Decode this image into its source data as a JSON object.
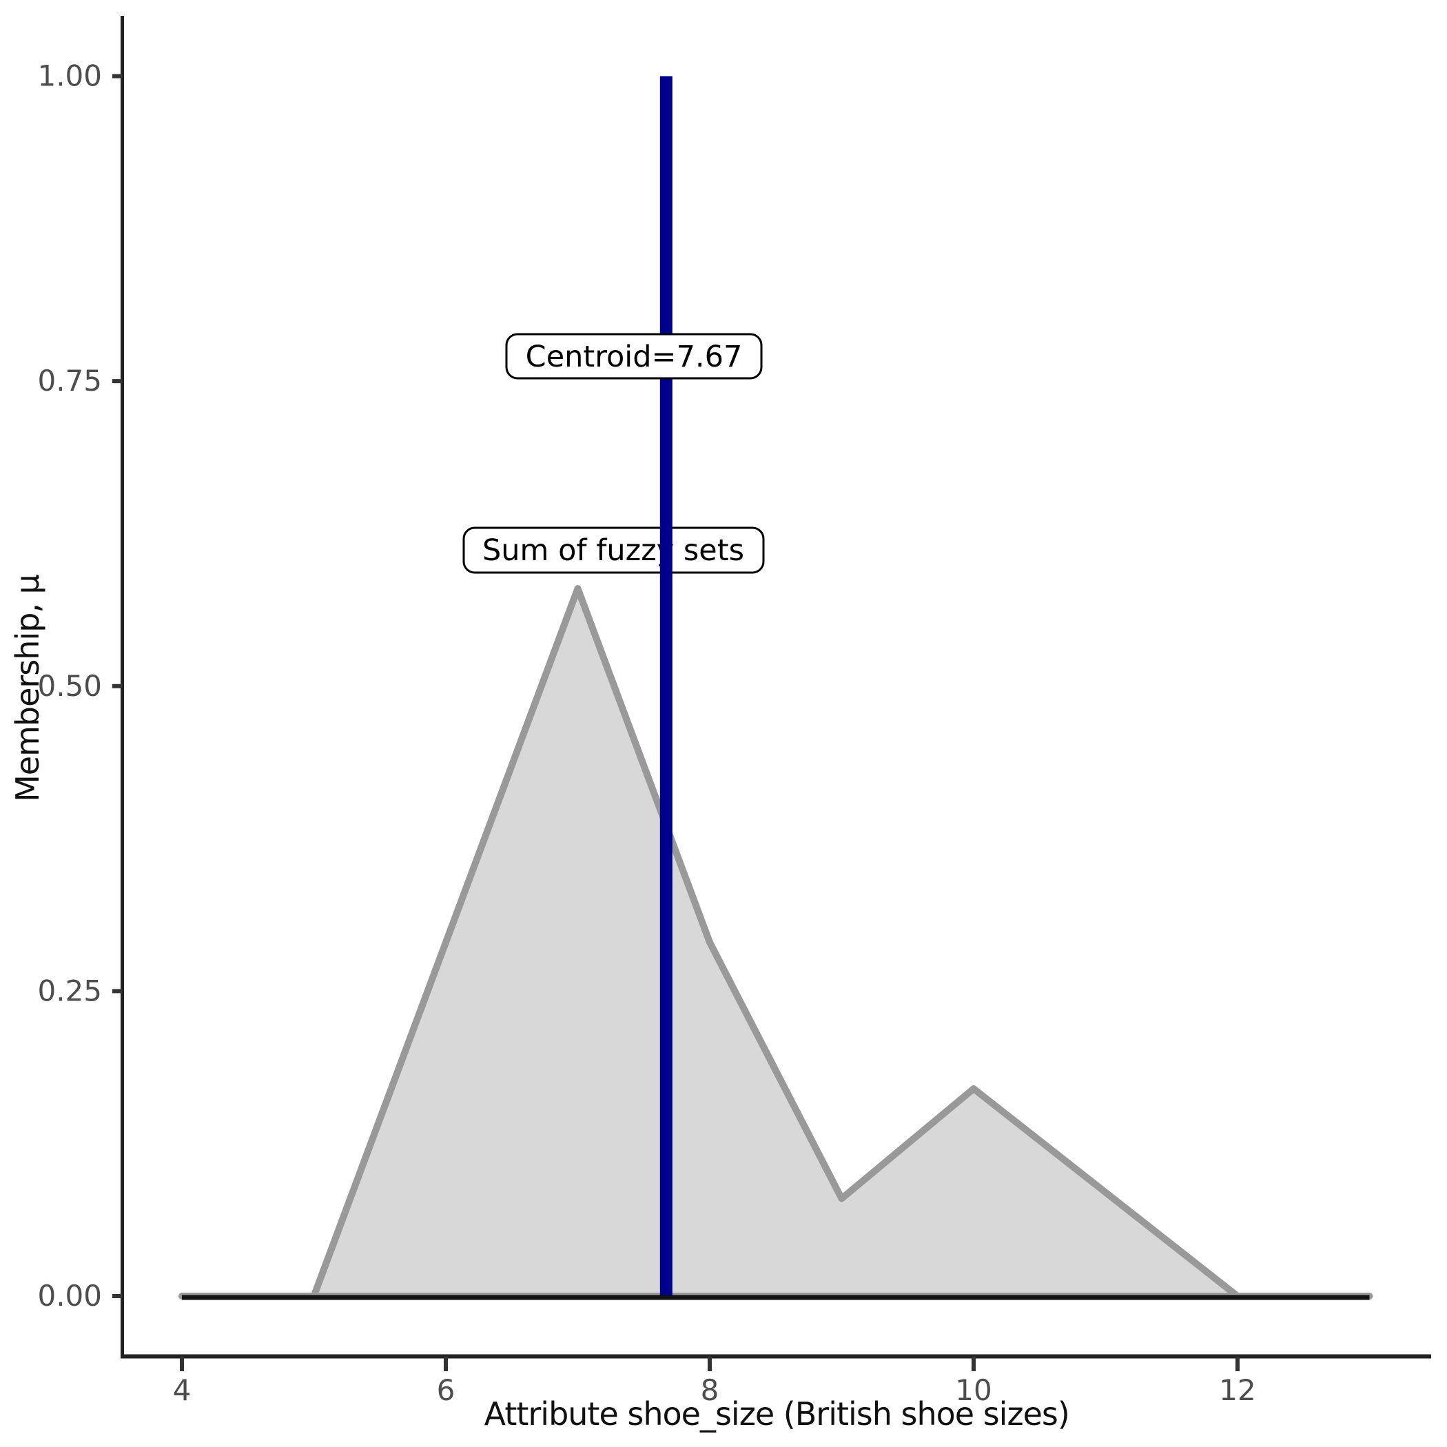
{
  "page": {
    "background": "#FFFFFF",
    "description": "Fuzzy membership plot with sum-of-fuzzy-sets area and centroid line"
  },
  "chart_data": {
    "type": "area",
    "title": "",
    "xlabel": "Attribute shoe_size (British shoe sizes)",
    "ylabel": "Membership, μ",
    "x": [
      4,
      5,
      6,
      7,
      8,
      9,
      10,
      11,
      12,
      13
    ],
    "values": [
      0,
      0,
      0.29,
      0.58,
      0.29,
      0.08,
      0.17,
      0.085,
      0,
      0
    ],
    "series_name": "Sum of fuzzy sets",
    "centroid": {
      "value": 7.67,
      "label": "Centroid=7.67"
    },
    "annotations": {
      "series_label": "Sum of fuzzy sets",
      "centroid_label": "Centroid=7.67"
    },
    "x_ticks": {
      "values": [
        4,
        6,
        8,
        10,
        12
      ],
      "labels": [
        "4",
        "6",
        "8",
        "10",
        "12"
      ]
    },
    "y_ticks": {
      "values": [
        0,
        0.25,
        0.5,
        0.75,
        1
      ],
      "labels": [
        "0.00",
        "0.25",
        "0.50",
        "0.75",
        "1.00"
      ]
    },
    "xlim": [
      3.5,
      13.5
    ],
    "ylim": [
      -0.05,
      1.05
    ],
    "grid": false,
    "legend": false,
    "baseline": 0,
    "colors": {
      "area_fill": "#D8D8D8",
      "area_stroke": "#999999",
      "zero_line": "#111111",
      "centroid_line": "#00008B",
      "axis_line": "#222222",
      "tick_mark": "#333333",
      "tick_label": "#4D4D4D",
      "axis_title": "#111111",
      "annotation_text": "#000000",
      "annotation_box_fill": "#FFFFFF",
      "annotation_box_border": "#000000"
    }
  }
}
